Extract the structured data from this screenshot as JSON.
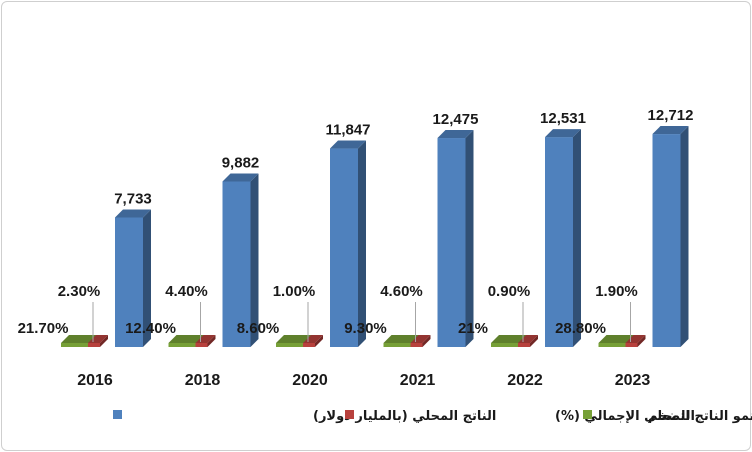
{
  "chart_data": {
    "type": "bar",
    "categories": [
      "2016",
      "2018",
      "2020",
      "2021",
      "2022",
      "2023"
    ],
    "series": [
      {
        "name": "التضخم",
        "values": [
          21.7,
          12.4,
          8.6,
          9.3,
          21,
          28.8
        ],
        "labels": [
          "21.70%",
          "12.40%",
          "8.60%",
          "9.30%",
          "21%",
          "28.80%"
        ],
        "color": "#77a037"
      },
      {
        "name": "نمو الناتج المحلي الإجمالي (%)",
        "values": [
          2.3,
          4.4,
          1.0,
          4.6,
          0.9,
          1.9
        ],
        "labels": [
          "2.30%",
          "4.40%",
          "1.00%",
          "4.60%",
          "0.90%",
          "1.90%"
        ],
        "color": "#b8413d"
      },
      {
        "name": "الناتج المحلي  (بالمليار دولار)",
        "values": [
          7733,
          9882,
          11847,
          12475,
          12531,
          12712
        ],
        "labels": [
          "7,733",
          "9,882",
          "11,847",
          "12,475",
          "12,531",
          "12,712"
        ],
        "color": "#4f81bd"
      }
    ],
    "legend_position": "bottom",
    "grid": false,
    "bar_style": "3d"
  }
}
